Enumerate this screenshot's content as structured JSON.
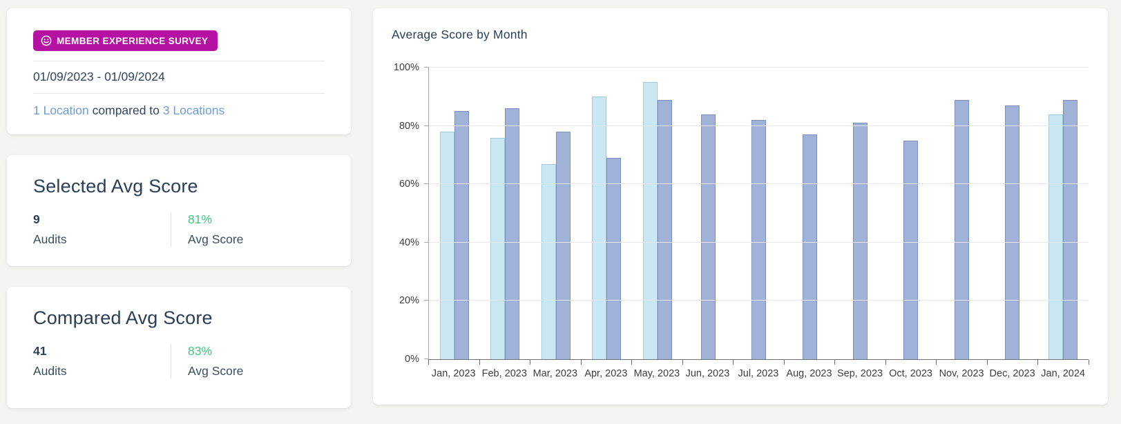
{
  "theme": {
    "badge_bg": "#b511a3",
    "navy": "#2b3e58",
    "link_blue": "#6f9cd3",
    "green": "#3ec97c",
    "selected_bar_fill": "#c9e8f4",
    "selected_bar_border": "#9fc8da",
    "compared_bar_fill": "#a0b2d8",
    "compared_bar_border": "#7d90bb"
  },
  "summary": {
    "badge_label": "MEMBER EXPERIENCE SURVEY",
    "badge_icon": "smiley-icon",
    "date_range": "01/09/2023 - 01/09/2024",
    "selected_location_link": "1 Location",
    "comparison_text": " compared to ",
    "compared_location_link": "3 Locations"
  },
  "selected_card": {
    "title": "Selected Avg Score",
    "audits_value": "9",
    "audits_label": "Audits",
    "score_value": "81%",
    "score_label": "Avg Score"
  },
  "compared_card": {
    "title": "Compared Avg Score",
    "audits_value": "41",
    "audits_label": "Audits",
    "score_value": "83%",
    "score_label": "Avg Score"
  },
  "chart_data": {
    "type": "bar",
    "title": "Average Score by Month",
    "categories": [
      "Jan, 2023",
      "Feb, 2023",
      "Mar, 2023",
      "Apr, 2023",
      "May, 2023",
      "Jun, 2023",
      "Jul, 2023",
      "Aug, 2023",
      "Sep, 2023",
      "Oct, 2023",
      "Nov, 2023",
      "Dec, 2023",
      "Jan, 2024"
    ],
    "series": [
      {
        "name": "Selected",
        "values": [
          78,
          76,
          67,
          90,
          95,
          null,
          null,
          null,
          null,
          null,
          null,
          null,
          84
        ]
      },
      {
        "name": "Compared",
        "values": [
          85,
          86,
          78,
          69,
          89,
          84,
          82,
          77,
          81,
          75,
          89,
          87,
          89
        ]
      }
    ],
    "ylabel": "",
    "xlabel": "",
    "ylim": [
      0,
      100
    ],
    "yticks": [
      0,
      20,
      40,
      60,
      80,
      100
    ],
    "ytick_format": "percent",
    "grid": true,
    "legend": "none"
  }
}
